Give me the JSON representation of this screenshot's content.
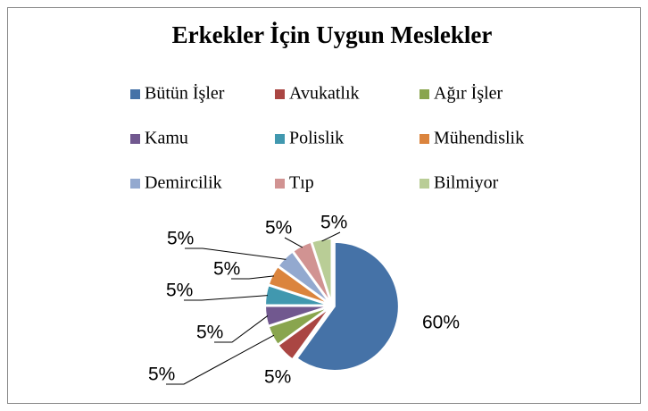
{
  "chart_data": {
    "type": "pie",
    "title": "Erkekler İçin Uygun Meslekler",
    "categories": [
      "Bütün İşler",
      "Avukatlık",
      "Ağır İşler",
      "Kamu",
      "Polislik",
      "Mühendislik",
      "Demircilik",
      "Tıp",
      "Bilmiyor"
    ],
    "values": [
      60,
      5,
      5,
      5,
      5,
      5,
      5,
      5,
      5
    ],
    "value_labels": [
      "60%",
      "5%",
      "5%",
      "5%",
      "5%",
      "5%",
      "5%",
      "5%",
      "5%"
    ],
    "colors": [
      "#4572A7",
      "#AA4643",
      "#89A54E",
      "#71588F",
      "#4198AF",
      "#DB843D",
      "#93A9CF",
      "#D19392",
      "#B9CD96"
    ],
    "legend": "top"
  }
}
